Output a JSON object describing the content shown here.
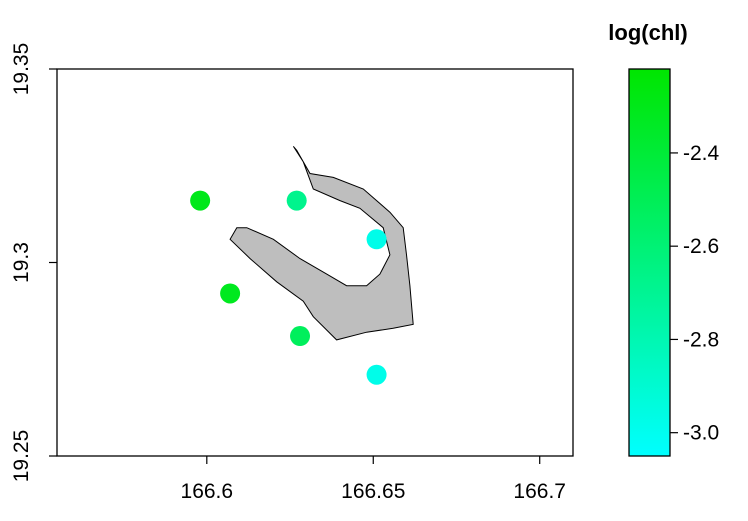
{
  "chart_data": {
    "type": "scatter",
    "title": "",
    "xlabel": "",
    "ylabel": "",
    "xlim": [
      166.555,
      166.71
    ],
    "ylim": [
      19.25,
      19.35
    ],
    "x_ticks": [
      {
        "value": 166.6,
        "label": "166.6"
      },
      {
        "value": 166.65,
        "label": "166.65"
      },
      {
        "value": 166.7,
        "label": "166.7"
      }
    ],
    "y_ticks": [
      {
        "value": 19.25,
        "label": "19.25"
      },
      {
        "value": 19.3,
        "label": "19.3"
      },
      {
        "value": 19.35,
        "label": "19.35"
      }
    ],
    "points": [
      {
        "x": 166.598,
        "y": 19.316,
        "log_chl": -2.3
      },
      {
        "x": 166.627,
        "y": 19.316,
        "log_chl": -2.68
      },
      {
        "x": 166.651,
        "y": 19.306,
        "log_chl": -2.98
      },
      {
        "x": 166.607,
        "y": 19.292,
        "log_chl": -2.32
      },
      {
        "x": 166.628,
        "y": 19.281,
        "log_chl": -2.52
      },
      {
        "x": 166.651,
        "y": 19.271,
        "log_chl": -2.98
      }
    ],
    "land_polygon": [
      [
        166.627,
        19.329
      ],
      [
        166.631,
        19.323
      ],
      [
        166.638,
        19.322
      ],
      [
        166.647,
        19.319
      ],
      [
        166.655,
        19.313
      ],
      [
        166.659,
        19.309
      ],
      [
        166.66,
        19.302
      ],
      [
        166.661,
        19.294
      ],
      [
        166.662,
        19.284
      ],
      [
        166.656,
        19.283
      ],
      [
        166.648,
        19.282
      ],
      [
        166.639,
        19.28
      ],
      [
        166.632,
        19.286
      ],
      [
        166.629,
        19.29
      ],
      [
        166.621,
        19.295
      ],
      [
        166.613,
        19.301
      ],
      [
        166.607,
        19.306
      ],
      [
        166.609,
        19.309
      ],
      [
        166.612,
        19.309
      ],
      [
        166.62,
        19.306
      ],
      [
        166.628,
        19.301
      ],
      [
        166.636,
        19.297
      ],
      [
        166.642,
        19.294
      ],
      [
        166.648,
        19.294
      ],
      [
        166.652,
        19.297
      ],
      [
        166.655,
        19.302
      ],
      [
        166.653,
        19.309
      ],
      [
        166.646,
        19.314
      ],
      [
        166.64,
        19.316
      ],
      [
        166.632,
        19.319
      ],
      [
        166.629,
        19.326
      ],
      [
        166.626,
        19.33
      ]
    ],
    "land_color": "#bebebe",
    "colorbar": {
      "title": "log(chl)",
      "min": -3.05,
      "max": -2.22,
      "low_color": "#00ffff",
      "high_color": "#00e600",
      "ticks": [
        {
          "value": -2.4,
          "label": "-2.4"
        },
        {
          "value": -2.6,
          "label": "-2.6"
        },
        {
          "value": -2.8,
          "label": "-2.8"
        },
        {
          "value": -3.0,
          "label": "-3.0"
        }
      ]
    },
    "grid": false
  }
}
